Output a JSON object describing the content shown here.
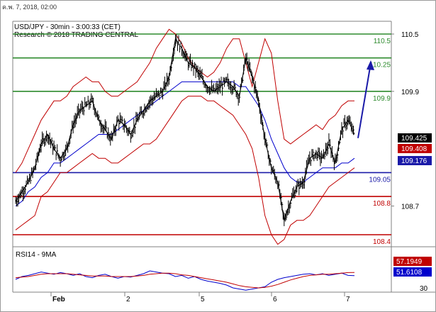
{
  "header": {
    "timestamp": "ค.พ. 7, 2018, 02:00",
    "instrument_line": "USD/JPY - 30min - 3:00:33 (CET)",
    "research_line": "Research © 2018 TRADING CENTRAL"
  },
  "colors": {
    "price": "#000000",
    "bollinger": "#c00000",
    "sma": "#0000cc",
    "resistance": "#2e8b2e",
    "pivot": "#1a1aa8",
    "support": "#c00000",
    "arrow": "#1a1aa8",
    "price_tag": "#000000",
    "bb_tag": "#c00000",
    "sma_tag": "#1a1aa8"
  },
  "chart_data": [
    {
      "type": "line",
      "title": "USD/JPY - 30min",
      "y_axis": {
        "ticks": [
          110.5,
          109.9,
          108.7
        ],
        "range": [
          108.3,
          110.55
        ]
      },
      "x_axis": {
        "ticks": [
          "Feb",
          "2",
          "5",
          "6",
          "7"
        ]
      },
      "levels": [
        {
          "label": "110.5",
          "value": 110.5,
          "kind": "resistance"
        },
        {
          "label": "110.25",
          "value": 110.25,
          "kind": "resistance"
        },
        {
          "label": "109.9",
          "value": 109.9,
          "kind": "resistance"
        },
        {
          "label": "109.05",
          "value": 109.05,
          "kind": "pivot"
        },
        {
          "label": "108.8",
          "value": 108.8,
          "kind": "support"
        },
        {
          "label": "108.4",
          "value": 108.4,
          "kind": "support"
        }
      ],
      "tags": [
        {
          "label": "109.425",
          "value": 109.425,
          "kind": "price"
        },
        {
          "label": "109.408",
          "value": 109.408,
          "kind": "bollinger"
        },
        {
          "label": "109.176",
          "value": 109.176,
          "kind": "sma"
        }
      ],
      "series": [
        {
          "kind": "close",
          "values": [
            108.75,
            108.85,
            108.95,
            109.1,
            109.35,
            109.45,
            109.3,
            109.2,
            109.3,
            109.55,
            109.7,
            109.75,
            109.8,
            109.6,
            109.5,
            109.4,
            109.6,
            109.55,
            109.45,
            109.6,
            109.7,
            109.8,
            109.85,
            109.9,
            110.05,
            110.45,
            110.35,
            110.2,
            110.15,
            110.05,
            109.95,
            109.9,
            109.95,
            110.0,
            109.95,
            109.85,
            110.25,
            110.05,
            109.8,
            109.4,
            109.1,
            108.95,
            108.55,
            108.75,
            108.9,
            108.95,
            109.2,
            109.25,
            109.2,
            109.35,
            109.15,
            109.5,
            109.6,
            109.45
          ]
        },
        {
          "kind": "sma",
          "values": [
            108.7,
            108.75,
            108.85,
            108.9,
            109.0,
            109.05,
            109.15,
            109.15,
            109.2,
            109.25,
            109.3,
            109.35,
            109.4,
            109.45,
            109.45,
            109.45,
            109.5,
            109.55,
            109.6,
            109.65,
            109.7,
            109.75,
            109.8,
            109.85,
            109.9,
            109.95,
            110.0,
            110.0,
            110.0,
            110.0,
            110.0,
            110.0,
            110.0,
            110.0,
            110.0,
            109.95,
            109.95,
            109.85,
            109.75,
            109.6,
            109.4,
            109.25,
            109.1,
            109.0,
            108.95,
            108.95,
            109.0,
            109.05,
            109.1,
            109.1,
            109.1,
            109.15,
            109.15,
            109.2
          ]
        },
        {
          "kind": "bollinger_upper",
          "values": [
            109.05,
            109.15,
            109.3,
            109.45,
            109.6,
            109.7,
            109.8,
            109.8,
            109.85,
            109.95,
            110.0,
            110.05,
            110.0,
            110.0,
            109.9,
            109.85,
            109.85,
            109.9,
            109.95,
            110.0,
            110.1,
            110.2,
            110.35,
            110.45,
            110.55,
            110.5,
            110.4,
            110.25,
            110.15,
            110.1,
            110.05,
            110.1,
            110.2,
            110.35,
            110.45,
            110.45,
            110.2,
            109.95,
            110.2,
            110.45,
            110.3,
            109.8,
            109.4,
            109.35,
            109.4,
            109.45,
            109.5,
            109.55,
            109.5,
            109.6,
            109.65,
            109.75,
            109.8,
            109.8
          ]
        },
        {
          "kind": "bollinger_lower",
          "values": [
            108.45,
            108.5,
            108.55,
            108.6,
            108.8,
            108.85,
            108.95,
            109.05,
            109.05,
            109.1,
            109.15,
            109.2,
            109.25,
            109.2,
            109.2,
            109.15,
            109.15,
            109.2,
            109.25,
            109.3,
            109.35,
            109.35,
            109.4,
            109.5,
            109.6,
            109.7,
            109.8,
            109.85,
            109.85,
            109.85,
            109.8,
            109.8,
            109.75,
            109.7,
            109.65,
            109.55,
            109.45,
            109.3,
            109.0,
            108.6,
            108.4,
            108.3,
            108.35,
            108.5,
            108.55,
            108.55,
            108.6,
            108.7,
            108.8,
            108.9,
            108.95,
            109.0,
            109.05,
            109.1
          ]
        }
      ],
      "forecast_arrow": {
        "from": 109.5,
        "to": 110.3
      }
    },
    {
      "type": "line",
      "title": "RSI14 - 9MA",
      "y_axis": {
        "ticks": [
          30
        ],
        "range": [
          25,
          75
        ]
      },
      "tags": [
        {
          "label": "57.1949",
          "value": 57.1949,
          "kind": "ma"
        },
        {
          "label": "51.6108",
          "value": 51.6108,
          "kind": "rsi"
        }
      ],
      "series": [
        {
          "kind": "rsi",
          "values": [
            45,
            50,
            52,
            55,
            58,
            56,
            54,
            57,
            55,
            52,
            55,
            50,
            48,
            52,
            54,
            50,
            47,
            50,
            49,
            52,
            55,
            60,
            58,
            56,
            55,
            50,
            52,
            47,
            50,
            45,
            42,
            40,
            38,
            35,
            30,
            28,
            26,
            28,
            30,
            32,
            40,
            45,
            48,
            50,
            52,
            54,
            55,
            53,
            55,
            52,
            54,
            56,
            52,
            51.6
          ]
        },
        {
          "kind": "ma",
          "values": [
            48,
            49,
            50,
            52,
            54,
            55,
            55,
            55,
            55,
            54,
            53,
            52,
            51,
            51,
            51,
            50,
            50,
            50,
            50,
            51,
            52,
            54,
            55,
            56,
            56,
            55,
            53,
            52,
            50,
            48,
            46,
            44,
            42,
            40,
            37,
            34,
            32,
            31,
            30,
            31,
            33,
            36,
            40,
            44,
            47,
            50,
            52,
            53,
            54,
            54,
            55,
            56,
            57,
            57.2
          ]
        }
      ]
    }
  ]
}
